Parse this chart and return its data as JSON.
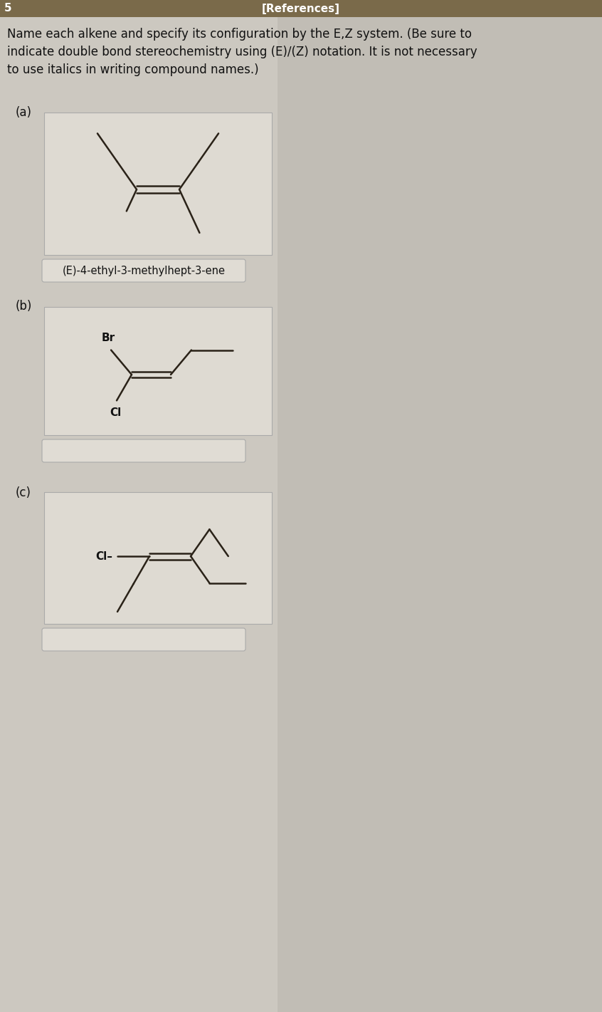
{
  "bg_color": "#ccc8c0",
  "header_color": "#7a6a4a",
  "header_text": "[References]",
  "header_num": "5",
  "question_text": "Name each alkene and specify its configuration by the E,Z system. (Be sure to\nindicate double bond stereochemistry using (E)/(Z) notation. It is not necessary\nto use italics in writing compound names.)",
  "answer_a": "(E)-4-ethyl-3-methylhept-3-ene",
  "box_bg": "#dedad2",
  "box_border": "#aaaaaa",
  "line_color": "#2a2218",
  "label_color": "#111111",
  "answer_box_bg": "#e0dcd4",
  "right_bg": "#b8b4ac"
}
